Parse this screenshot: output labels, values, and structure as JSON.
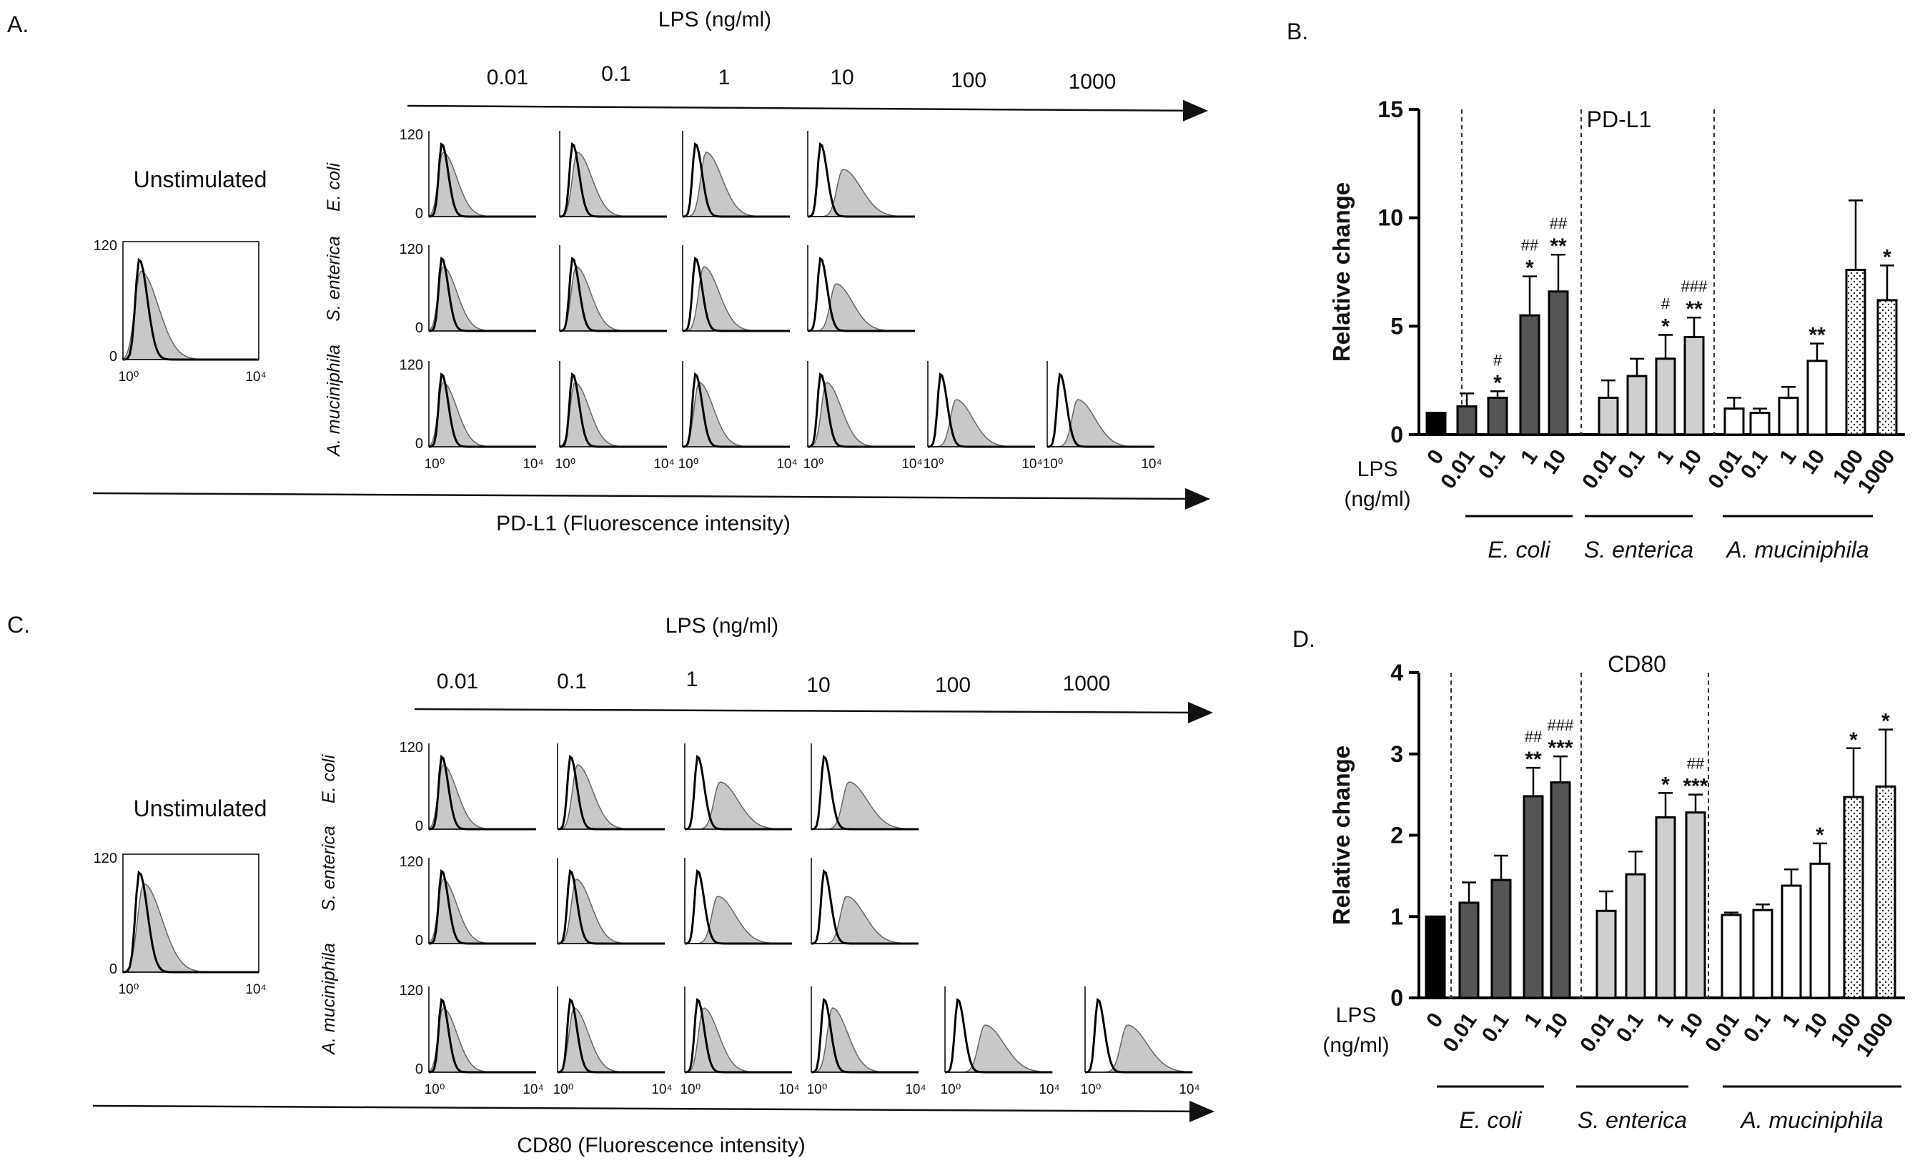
{
  "panel_labels": {
    "a": "A.",
    "b": "B.",
    "c": "C.",
    "d": "D."
  },
  "histograms": {
    "lps_title": "LPS (ng/ml)",
    "concentrations": [
      "0.01",
      "0.1",
      "1",
      "10",
      "100",
      "1000"
    ],
    "unstimulated": "Unstimulated",
    "species": [
      "E. coli",
      "S. enterica",
      "A. muciniphila"
    ],
    "y_tick_top": "120",
    "y_tick_bottom": "0",
    "x_tick_left": "10⁰",
    "x_tick_right": "10⁴",
    "a_xlabel": "PD-L1 (Fluorescence intensity)",
    "c_xlabel": "CD80 (Fluorescence intensity)",
    "row_columns": [
      4,
      4,
      6
    ],
    "panel_a_shift": [
      0.0,
      0.15,
      0.4,
      0.9,
      0.0,
      0.0,
      0.0,
      0.1,
      0.3,
      0.6,
      0.0,
      0.0,
      0.0,
      0.05,
      0.1,
      0.2,
      0.6,
      0.7
    ],
    "panel_c_shift": [
      0.0,
      0.25,
      0.9,
      1.0,
      0.0,
      0.0,
      0.0,
      0.2,
      0.8,
      0.9,
      0.0,
      0.0,
      0.0,
      0.1,
      0.2,
      0.3,
      1.1,
      1.2
    ]
  },
  "chart_data": [
    {
      "type": "bar",
      "panel": "B.",
      "title": "PD-L1",
      "ylabel": "Relative change",
      "xlabel_prefix": "LPS",
      "xlabel_unit": "(ng/ml)",
      "ylim": [
        0,
        15
      ],
      "yticks": [
        "0",
        "5",
        "10",
        "15"
      ],
      "categories": [
        "0",
        "0.01",
        "0.1",
        "1",
        "10",
        "0.01",
        "0.1",
        "1",
        "10",
        "0.01",
        "0.1",
        "1",
        "10",
        "100",
        "1000"
      ],
      "groups": [
        "E. coli",
        "S. enterica",
        "A. muciniphila"
      ],
      "values": [
        1.0,
        1.3,
        1.7,
        5.5,
        6.6,
        1.7,
        2.7,
        3.5,
        4.5,
        1.2,
        1.0,
        1.7,
        3.4,
        7.6,
        6.2
      ],
      "errors": [
        0.0,
        0.6,
        0.3,
        1.8,
        1.7,
        0.8,
        0.8,
        1.1,
        0.9,
        0.5,
        0.2,
        0.5,
        0.8,
        3.2,
        1.6
      ],
      "fills": [
        "black",
        "dark",
        "dark",
        "dark",
        "dark",
        "light",
        "light",
        "light",
        "light",
        "white",
        "white",
        "white",
        "white",
        "dotted",
        "dotted"
      ],
      "stars": [
        "",
        "",
        "*",
        "*",
        "**",
        "",
        "",
        "*",
        "**",
        "",
        "",
        "",
        "**",
        "",
        "*"
      ],
      "hashes": [
        "",
        "",
        "#",
        "##",
        "##",
        "",
        "",
        "#",
        "###",
        "",
        "",
        "",
        "",
        "",
        ""
      ]
    },
    {
      "type": "bar",
      "panel": "D.",
      "title": "CD80",
      "ylabel": "Relative change",
      "xlabel_prefix": "LPS",
      "xlabel_unit": "(ng/ml)",
      "ylim": [
        0,
        4
      ],
      "yticks": [
        "0",
        "1",
        "2",
        "3",
        "4"
      ],
      "categories": [
        "0",
        "0.01",
        "0.1",
        "1",
        "10",
        "0.01",
        "0.1",
        "1",
        "10",
        "0.01",
        "0.1",
        "1",
        "10",
        "100",
        "1000"
      ],
      "groups": [
        "E. coli",
        "S. enterica",
        "A. muciniphila"
      ],
      "values": [
        1.0,
        1.17,
        1.45,
        2.48,
        2.65,
        1.07,
        1.52,
        2.22,
        2.28,
        1.02,
        1.08,
        1.38,
        1.65,
        2.47,
        2.6
      ],
      "errors": [
        0.0,
        0.25,
        0.3,
        0.35,
        0.32,
        0.24,
        0.28,
        0.3,
        0.22,
        0.03,
        0.07,
        0.2,
        0.25,
        0.6,
        0.7
      ],
      "fills": [
        "black",
        "dark",
        "dark",
        "dark",
        "dark",
        "light",
        "light",
        "light",
        "light",
        "white",
        "white",
        "white",
        "white",
        "dotted",
        "dotted"
      ],
      "stars": [
        "",
        "",
        "",
        "**",
        "***",
        "",
        "",
        "*",
        "***",
        "",
        "",
        "",
        "*",
        "*",
        "*"
      ],
      "hashes": [
        "",
        "",
        "",
        "##",
        "###",
        "",
        "",
        "",
        "##",
        "",
        "",
        "",
        "",
        "",
        ""
      ]
    }
  ],
  "colors": {
    "dark": "#555555",
    "light": "#cfcfcf",
    "black": "#000000",
    "white": "#ffffff",
    "hist_fill": "#c8c8c8"
  }
}
